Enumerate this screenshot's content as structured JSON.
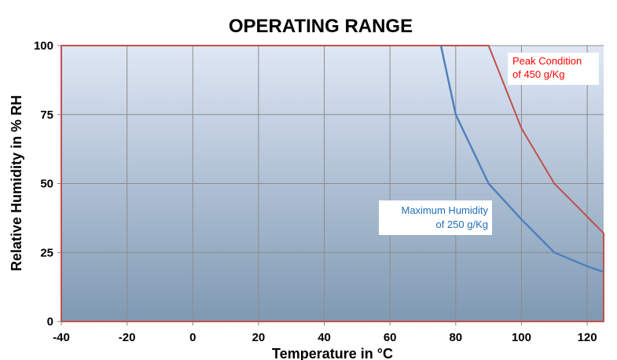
{
  "chart_data": {
    "type": "line",
    "title": "OPERATING RANGE",
    "xlabel": "Temperature in °C",
    "ylabel": "Relative Humidity in % RH",
    "xlim": [
      -40,
      125
    ],
    "ylim": [
      0,
      100
    ],
    "x_ticks": [
      -40,
      -20,
      0,
      20,
      40,
      60,
      80,
      100,
      120
    ],
    "y_ticks": [
      0,
      25,
      50,
      75,
      100
    ],
    "grid": true,
    "series": [
      {
        "color": "#4f81bd",
        "x": [
          75.5,
          80,
          90,
          100,
          110,
          120,
          125
        ],
        "y": [
          100,
          75,
          50,
          37,
          25,
          20,
          18
        ]
      },
      {
        "color": "#c0504d",
        "x": [
          -40,
          90,
          100,
          110,
          120,
          125
        ],
        "y": [
          100,
          100,
          70,
          50,
          38,
          32
        ]
      }
    ],
    "annotations": [
      {
        "lines": [
          "Maximum Humidity",
          "of 250 g/Kg"
        ],
        "color": "#1f6fb8"
      },
      {
        "lines": [
          "Peak Condition",
          "of 450 g/Kg"
        ],
        "color": "#ff0000"
      }
    ],
    "background_gradient": [
      "#dfe7f5",
      "#7f99b3"
    ]
  }
}
